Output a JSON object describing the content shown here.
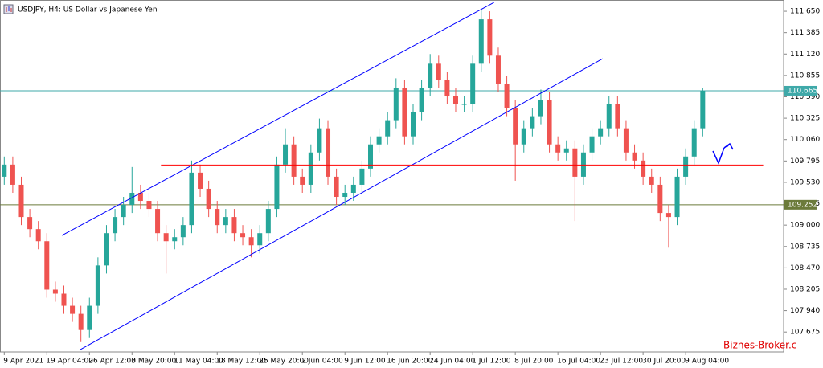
{
  "chart_data": {
    "type": "candlestick",
    "title": "USDJPY, H4:  US Dollar vs Japanese Yen",
    "watermark": "Biznes-Broker.c",
    "up_color": "#26a69a",
    "down_color": "#ef5350",
    "xlim": [
      -0.5,
      91.5
    ],
    "ylim": [
      107.428,
      111.79
    ],
    "xticks": [
      {
        "value": 0,
        "label": "9 Apr 2021"
      },
      {
        "value": 5,
        "label": "19 Apr 04:00"
      },
      {
        "value": 10,
        "label": "26 Apr 12:00"
      },
      {
        "value": 15,
        "label": "3 May 20:00"
      },
      {
        "value": 20,
        "label": "11 May 04:00"
      },
      {
        "value": 25,
        "label": "18 May 12:00"
      },
      {
        "value": 30,
        "label": "25 May 20:00"
      },
      {
        "value": 35,
        "label": "2 Jun 04:00"
      },
      {
        "value": 40,
        "label": "9 Jun 12:00"
      },
      {
        "value": 45,
        "label": "16 Jun 20:00"
      },
      {
        "value": 50,
        "label": "24 Jun 04:00"
      },
      {
        "value": 55,
        "label": "1 Jul 12:00"
      },
      {
        "value": 60,
        "label": "8 Jul 20:00"
      },
      {
        "value": 65,
        "label": "16 Jul 04:00"
      },
      {
        "value": 70,
        "label": "23 Jul 12:00"
      },
      {
        "value": 75,
        "label": "30 Jul 20:00"
      },
      {
        "value": 80,
        "label": "9 Aug 04:00"
      }
    ],
    "yticks": [
      {
        "value": 111.65,
        "label": "111.650"
      },
      {
        "value": 111.385,
        "label": "111.385"
      },
      {
        "value": 111.12,
        "label": "111.120"
      },
      {
        "value": 110.855,
        "label": "110.855"
      },
      {
        "value": 110.59,
        "label": "110.590"
      },
      {
        "value": 110.325,
        "label": "110.325"
      },
      {
        "value": 110.06,
        "label": "110.060"
      },
      {
        "value": 109.795,
        "label": "109.795"
      },
      {
        "value": 109.53,
        "label": "109.530"
      },
      {
        "value": 109.265,
        "label": "109.265"
      },
      {
        "value": 109.0,
        "label": "109.000"
      },
      {
        "value": 108.735,
        "label": "108.735"
      },
      {
        "value": 108.47,
        "label": "108.470"
      },
      {
        "value": 108.205,
        "label": "108.205"
      },
      {
        "value": 107.94,
        "label": "107.940"
      },
      {
        "value": 107.675,
        "label": "107.675"
      }
    ],
    "open": [
      109.6,
      109.75,
      109.5,
      109.1,
      108.95,
      108.8,
      108.2,
      108.15,
      108.0,
      107.9,
      107.7,
      108.0,
      108.5,
      108.9,
      109.1,
      109.25,
      109.4,
      109.3,
      109.2,
      108.9,
      108.8,
      108.85,
      109.0,
      109.65,
      109.45,
      109.2,
      109.0,
      109.1,
      108.9,
      108.85,
      108.75,
      108.9,
      109.2,
      109.75,
      110.0,
      109.6,
      109.5,
      109.9,
      110.2,
      109.6,
      109.35,
      109.4,
      109.5,
      109.7,
      110.0,
      110.1,
      110.3,
      110.7,
      110.1,
      110.4,
      110.7,
      111.0,
      110.8,
      110.6,
      110.5,
      110.5,
      111.0,
      111.55,
      111.1,
      110.75,
      110.45,
      110.0,
      110.2,
      110.35,
      110.55,
      110.0,
      109.9,
      109.95,
      109.6,
      109.9,
      110.1,
      110.2,
      110.5,
      110.2,
      109.9,
      109.8,
      109.6,
      109.5,
      109.15,
      109.1,
      109.6,
      109.85,
      110.2
    ],
    "high": [
      109.85,
      109.85,
      109.6,
      109.2,
      109.05,
      108.9,
      108.3,
      108.25,
      108.1,
      108.0,
      108.1,
      108.6,
      109.0,
      109.2,
      109.35,
      109.72,
      109.5,
      109.4,
      109.3,
      109.0,
      108.95,
      109.1,
      109.8,
      109.75,
      109.55,
      109.3,
      109.2,
      109.2,
      109.0,
      108.95,
      109.0,
      109.3,
      109.85,
      110.2,
      110.1,
      109.7,
      110.0,
      110.32,
      110.3,
      109.7,
      109.5,
      109.6,
      109.8,
      110.1,
      110.2,
      110.4,
      110.82,
      110.8,
      110.5,
      110.8,
      111.12,
      111.1,
      110.9,
      110.7,
      110.6,
      111.1,
      111.68,
      111.65,
      111.2,
      110.85,
      110.55,
      110.3,
      110.45,
      110.68,
      110.65,
      110.1,
      110.05,
      110.05,
      110.0,
      110.2,
      110.3,
      110.6,
      110.6,
      110.3,
      110.0,
      109.9,
      109.7,
      109.6,
      109.25,
      109.7,
      109.95,
      110.3,
      110.7
    ],
    "low": [
      109.5,
      109.4,
      109.0,
      108.85,
      108.7,
      108.1,
      108.05,
      107.9,
      107.8,
      107.55,
      107.6,
      107.9,
      108.4,
      108.8,
      109.0,
      109.15,
      109.2,
      109.1,
      108.8,
      108.4,
      108.7,
      108.75,
      108.9,
      109.35,
      109.1,
      108.9,
      108.9,
      108.8,
      108.75,
      108.6,
      108.65,
      108.8,
      109.1,
      109.65,
      109.5,
      109.4,
      109.4,
      109.8,
      109.5,
      109.25,
      109.25,
      109.3,
      109.4,
      109.6,
      109.9,
      110.0,
      110.2,
      110.0,
      110.0,
      110.3,
      110.6,
      110.7,
      110.5,
      110.4,
      110.4,
      110.4,
      110.9,
      111.0,
      110.65,
      110.35,
      109.55,
      109.9,
      110.1,
      110.25,
      109.9,
      109.8,
      109.8,
      109.05,
      109.5,
      109.8,
      110.0,
      110.1,
      110.1,
      109.8,
      109.7,
      109.5,
      109.4,
      109.05,
      108.72,
      109.0,
      109.5,
      109.75,
      110.1
    ],
    "close": [
      109.75,
      109.5,
      109.1,
      108.95,
      108.8,
      108.2,
      108.15,
      108.0,
      107.9,
      107.7,
      108.0,
      108.5,
      108.9,
      109.1,
      109.25,
      109.4,
      109.3,
      109.2,
      108.9,
      108.8,
      108.85,
      109.0,
      109.65,
      109.45,
      109.2,
      109.0,
      109.1,
      108.9,
      108.85,
      108.75,
      108.9,
      109.2,
      109.75,
      110.0,
      109.6,
      109.5,
      109.9,
      110.2,
      109.6,
      109.35,
      109.4,
      109.5,
      109.7,
      110.0,
      110.1,
      110.3,
      110.7,
      110.1,
      110.4,
      110.7,
      111.0,
      110.8,
      110.6,
      110.5,
      110.5,
      111.0,
      111.55,
      111.1,
      110.75,
      110.45,
      110.0,
      110.2,
      110.35,
      110.55,
      110.0,
      109.9,
      109.95,
      109.6,
      109.9,
      110.1,
      110.2,
      110.5,
      110.2,
      109.9,
      109.8,
      109.6,
      109.5,
      109.15,
      109.1,
      109.6,
      109.85,
      110.2,
      110.665
    ],
    "hlines": [
      {
        "value": 110.665,
        "color": "#3fa9a9"
      },
      {
        "value": 109.252,
        "color": "#6b7a3a"
      }
    ],
    "lines": [
      {
        "color": "#0000ff",
        "x": [
          6.76,
          57.5
        ],
        "y": [
          108.871,
          111.76
        ]
      },
      {
        "color": "#0000ff",
        "x": [
          8.93,
          70.25
        ],
        "y": [
          107.457,
          111.062
        ]
      },
      {
        "color": "#ff0000",
        "x": [
          18.4,
          89.1
        ],
        "y": [
          109.745,
          109.745
        ]
      }
    ]
  }
}
